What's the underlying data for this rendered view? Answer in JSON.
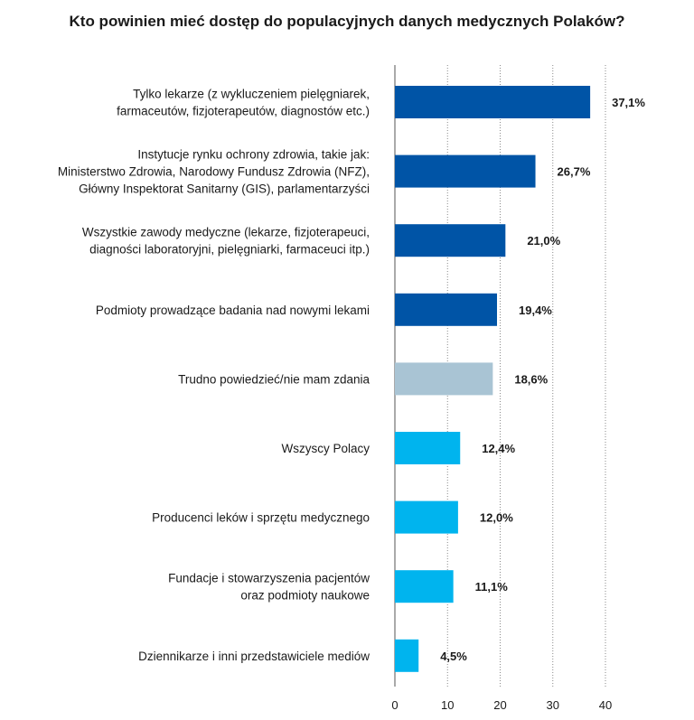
{
  "chart_data": {
    "type": "bar",
    "orientation": "horizontal",
    "title": "Kto powinien mieć dostęp do populacyjnych danych medycznych Polaków?",
    "xlabel": "",
    "ylabel": "",
    "xlim": [
      0,
      40
    ],
    "x_ticks": [
      "0",
      "10",
      "20",
      "30",
      "40"
    ],
    "grid": "vertical dotted",
    "categories": [
      [
        "Tylko lekarze (z wykluczeniem pielęgniarek,",
        "farmaceutów, fizjoterapeutów, diagnostów etc.)"
      ],
      [
        "Instytucje rynku ochrony zdrowia, takie jak:",
        "Ministerstwo Zdrowia, Narodowy Fundusz Zdrowia (NFZ),",
        "Główny Inspektorat Sanitarny (GIS), parlamentarzyści"
      ],
      [
        "Wszystkie zawody medyczne (lekarze, fizjoterapeuci,",
        "diagności laboratoryjni, pielęgniarki, farmaceuci itp.)"
      ],
      [
        "Podmioty prowadzące badania nad nowymi lekami"
      ],
      [
        "Trudno powiedzieć/nie mam zdania"
      ],
      [
        "Wszyscy Polacy"
      ],
      [
        "Producenci leków i sprzętu medycznego"
      ],
      [
        "Fundacje i stowarzyszenia pacjentów",
        "oraz podmioty naukowe"
      ],
      [
        "Dziennikarze i inni przedstawiciele mediów"
      ]
    ],
    "values": [
      37.1,
      26.7,
      21.0,
      19.4,
      18.6,
      12.4,
      12.0,
      11.1,
      4.5
    ],
    "value_labels": [
      "37,1%",
      "26,7%",
      "21,0%",
      "19,4%",
      "18,6%",
      "12,4%",
      "12,0%",
      "11,1%",
      "4,5%"
    ],
    "colors": [
      "#0054a6",
      "#0054a6",
      "#0054a6",
      "#0054a6",
      "#a9c4d4",
      "#00b4ee",
      "#00b4ee",
      "#00b4ee",
      "#00b4ee"
    ]
  }
}
